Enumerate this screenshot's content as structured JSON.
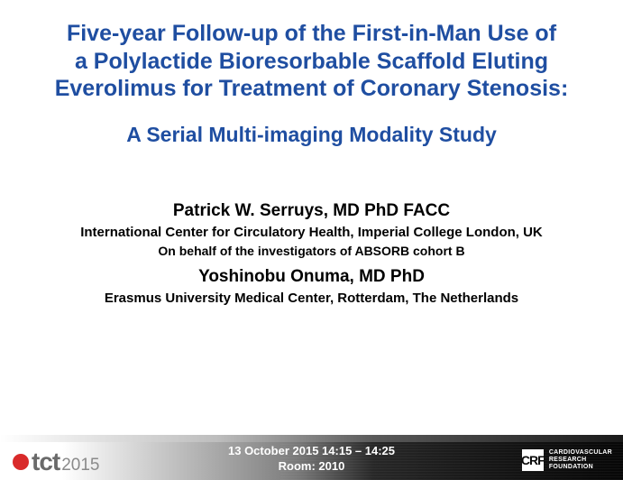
{
  "colors": {
    "title": "#1f4ea1",
    "body": "#000000",
    "footer_text": "#ffffff",
    "tct_dot": "#d92a2a",
    "tct_text": "#6a6a6a",
    "tct_year": "#8a8a8a",
    "background": "#ffffff"
  },
  "typography": {
    "title_size_pt": 25,
    "subtitle_size_pt": 23,
    "author_name_size_pt": 19,
    "author_affil_size_pt": 15,
    "session_size_pt": 13
  },
  "title": {
    "line1": "Five-year Follow-up of the First-in-Man Use of",
    "line2": "a Polylactide Bioresorbable Scaffold Eluting",
    "line3": "Everolimus for Treatment of Coronary Stenosis:",
    "subtitle": "A Serial Multi-imaging Modality Study"
  },
  "authors": {
    "a1_name": "Patrick W. Serruys, MD PhD FACC",
    "a1_affil": "International Center for Circulatory Health, Imperial College London, UK",
    "a1_behalf": "On behalf of the investigators of ABSORB cohort B",
    "a2_name": "Yoshinobu Onuma, MD PhD",
    "a2_affil": "Erasmus University Medical Center, Rotterdam, The Netherlands"
  },
  "footer": {
    "tct_label": "tct",
    "tct_year": "2015",
    "session_line1": "13 October 2015 14:15 – 14:25",
    "session_line2": "Room: 2010",
    "crf_abbr": "CRF",
    "crf_line1": "CARDIOVASCULAR",
    "crf_line2": "RESEARCH",
    "crf_line3": "FOUNDATION"
  }
}
